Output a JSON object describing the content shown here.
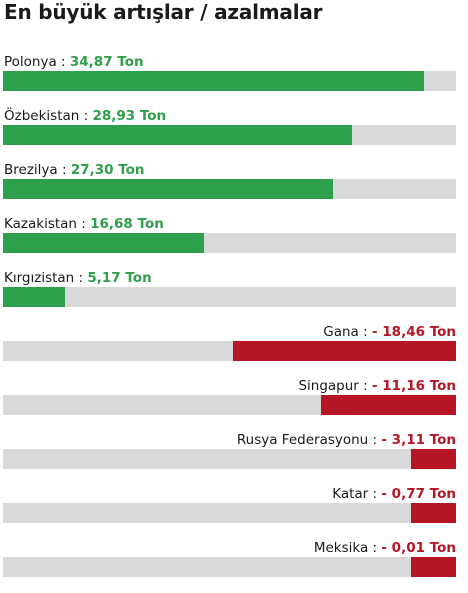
{
  "title": "En büyük artışlar / azalmalar",
  "colors": {
    "increase": "#2e9f4a",
    "decrease": "#b51525",
    "track": "#d9d9d9"
  },
  "chart_data": {
    "type": "bar",
    "orientation": "horizontal",
    "title": "En büyük artışlar / azalmalar",
    "unit": "Ton",
    "max_abs": 37.5,
    "items": [
      {
        "name": "Polonya",
        "value": 34.87,
        "label": "34,87 Ton",
        "direction": "increase"
      },
      {
        "name": "Özbekistan",
        "value": 28.93,
        "label": "28,93 Ton",
        "direction": "increase"
      },
      {
        "name": "Brezilya",
        "value": 27.3,
        "label": "27,30 Ton",
        "direction": "increase"
      },
      {
        "name": "Kazakistan",
        "value": 16.68,
        "label": "16,68 Ton",
        "direction": "increase"
      },
      {
        "name": "Kırgızistan",
        "value": 5.17,
        "label": "5,17 Ton",
        "direction": "increase"
      },
      {
        "name": "Gana",
        "value": -18.46,
        "label": "- 18,46 Ton",
        "direction": "decrease"
      },
      {
        "name": "Singapur",
        "value": -11.16,
        "label": "- 11,16 Ton",
        "direction": "decrease"
      },
      {
        "name": "Rusya Federasyonu",
        "value": -3.11,
        "label": "- 3,11 Ton",
        "direction": "decrease"
      },
      {
        "name": "Katar",
        "value": -0.77,
        "label": "- 0,77 Ton",
        "direction": "decrease"
      },
      {
        "name": "Meksika",
        "value": -0.01,
        "label": "- 0,01 Ton",
        "direction": "decrease"
      }
    ]
  }
}
